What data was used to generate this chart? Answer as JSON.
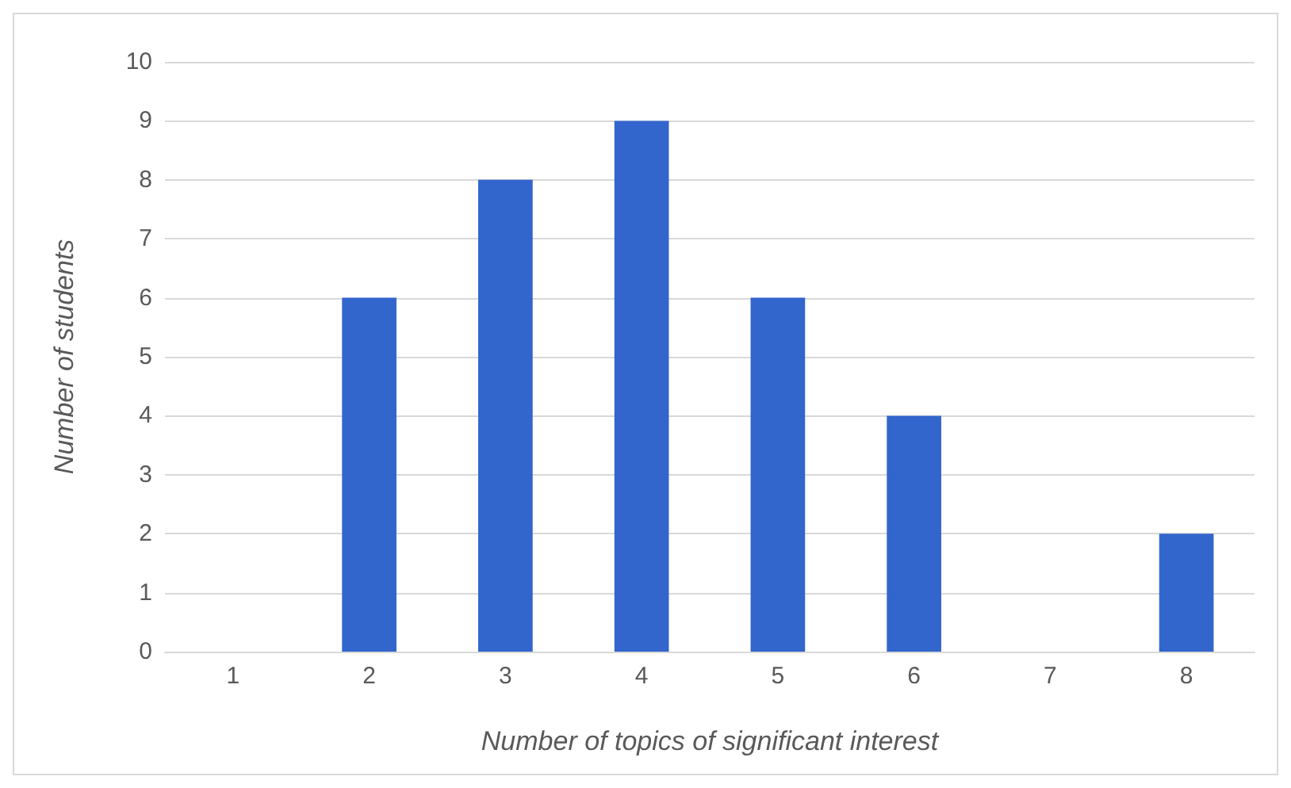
{
  "chart_data": {
    "type": "bar",
    "xlabel": "Number of topics of significant interest",
    "ylabel": "Number of students",
    "categories": [
      "1",
      "2",
      "3",
      "4",
      "5",
      "6",
      "7",
      "8"
    ],
    "values": [
      0,
      6,
      8,
      9,
      6,
      4,
      0,
      2
    ],
    "color": "#3366cc",
    "ylim": [
      0,
      10
    ],
    "yticks": [
      0,
      1,
      2,
      3,
      4,
      5,
      6,
      7,
      8,
      9,
      10
    ],
    "grid": "y"
  }
}
